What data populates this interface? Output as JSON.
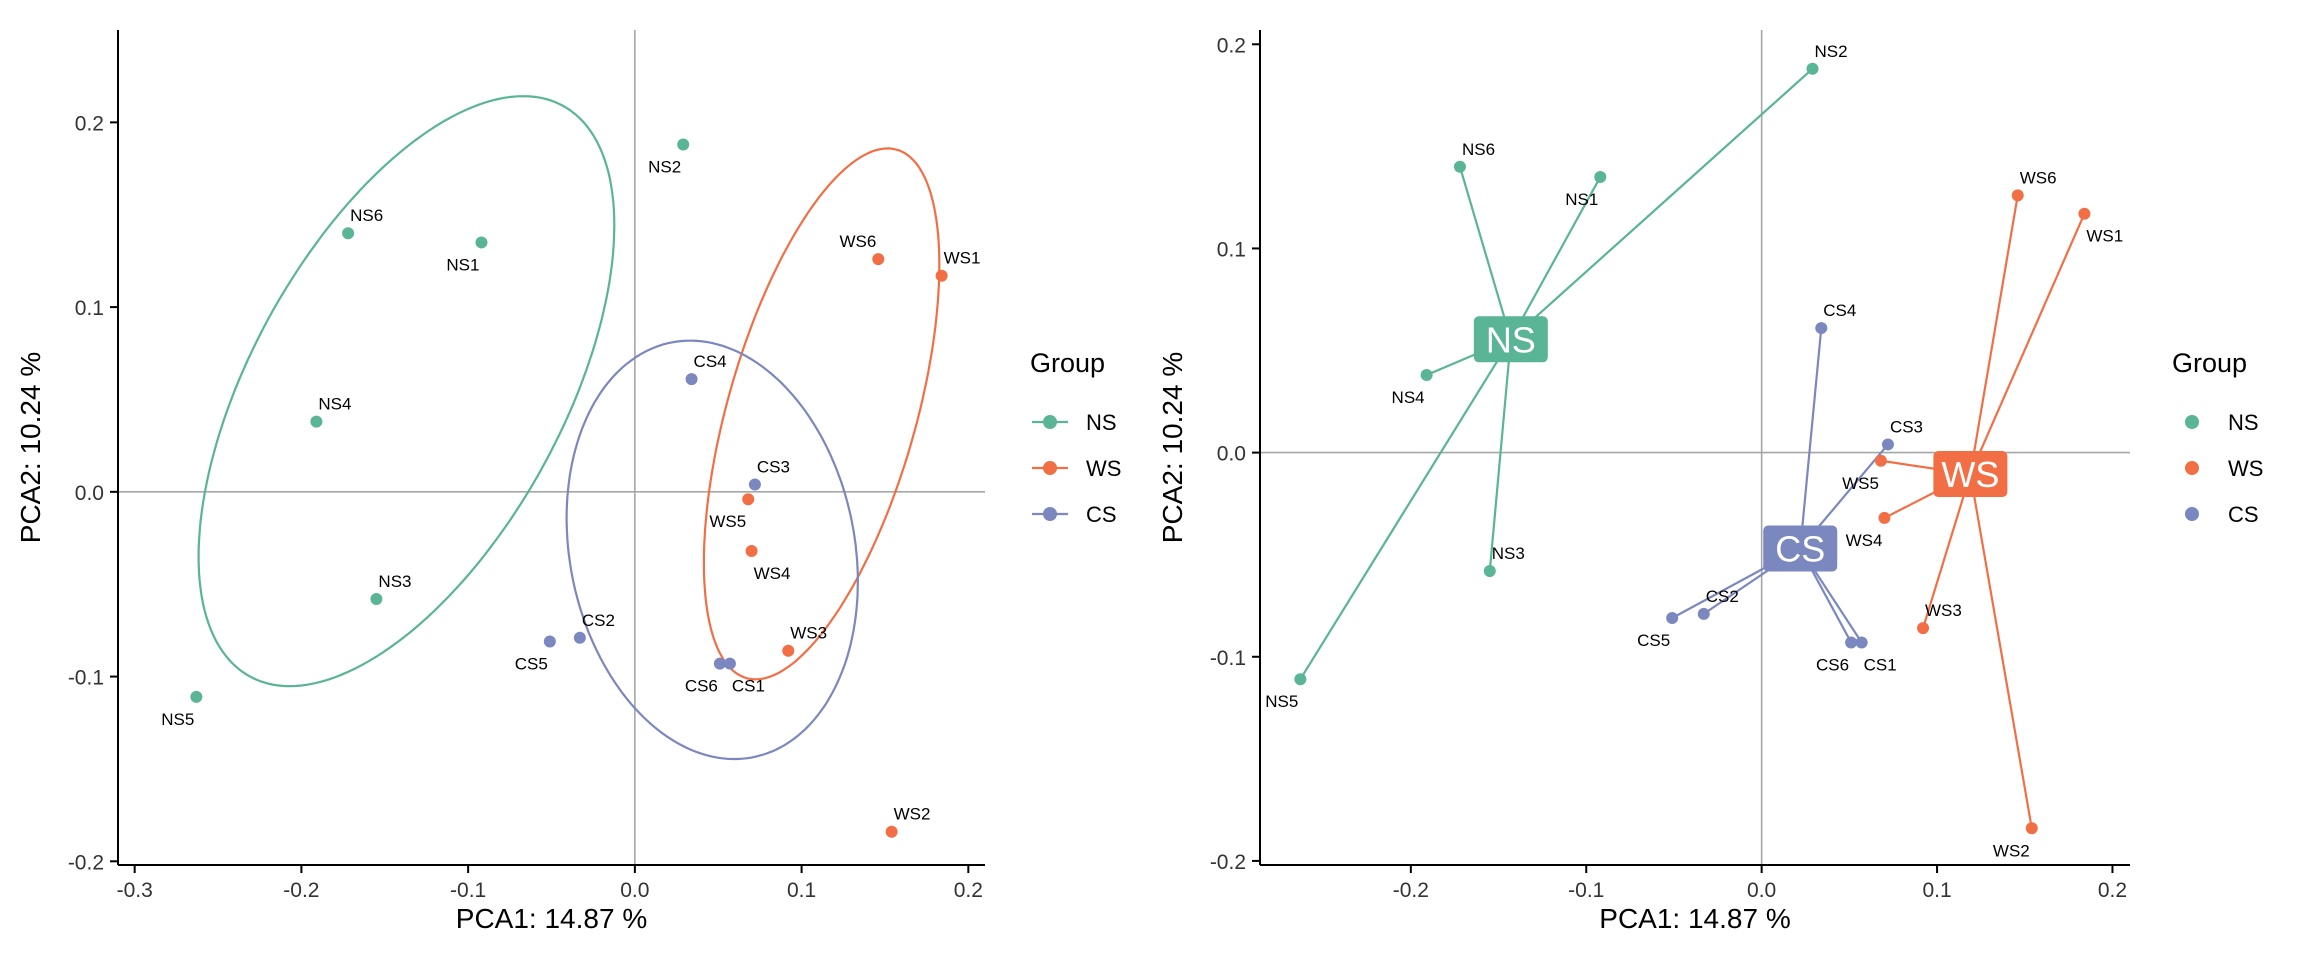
{
  "colors": {
    "NS": "#5AB496",
    "WS": "#F26F46",
    "CS": "#7B87BF",
    "axis": "#000000",
    "zero": "#A6A6A6",
    "text": "#000000"
  },
  "chart_data": [
    {
      "type": "scatter",
      "title": "",
      "xlabel": "PCA1:  14.87 %",
      "ylabel": "PCA2:  10.24 %",
      "xlim": [
        -0.31,
        0.21
      ],
      "ylim": [
        -0.202,
        0.25
      ],
      "xticks": [
        -0.3,
        -0.2,
        -0.1,
        0.0,
        0.1,
        0.2
      ],
      "xtick_labels": [
        "-0.3",
        "-0.2",
        "-0.1",
        "0.0",
        "0.1",
        "0.2"
      ],
      "yticks": [
        -0.2,
        -0.1,
        0.0,
        0.1,
        0.2
      ],
      "ytick_labels": [
        "-0.2",
        "-0.1",
        "0.0",
        "0.1",
        "0.2"
      ],
      "legend": {
        "title": "Group",
        "entries": [
          "NS",
          "WS",
          "CS"
        ],
        "position": "right"
      },
      "ellipses": [
        {
          "group": "NS",
          "center": [
            -0.137,
            0.0545
          ],
          "rx": 0.181,
          "ry": 0.091,
          "angle_deg": 57
        },
        {
          "group": "WS",
          "center": [
            0.112,
            0.0422
          ],
          "rx": 0.15,
          "ry": 0.056,
          "angle_deg": 72
        },
        {
          "group": "CS",
          "center": [
            0.0464,
            -0.0314
          ],
          "rx": 0.115,
          "ry": 0.085,
          "angle_deg": 105
        }
      ],
      "points": [
        {
          "label": "NS1",
          "group": "NS",
          "x": -0.092,
          "y": 0.135,
          "label_pos": "below-left"
        },
        {
          "label": "NS2",
          "group": "NS",
          "x": 0.029,
          "y": 0.188,
          "label_pos": "below-left"
        },
        {
          "label": "NS3",
          "group": "NS",
          "x": -0.155,
          "y": -0.058,
          "label_pos": "above-right"
        },
        {
          "label": "NS4",
          "group": "NS",
          "x": -0.191,
          "y": 0.038,
          "label_pos": "above-right"
        },
        {
          "label": "NS5",
          "group": "NS",
          "x": -0.263,
          "y": -0.111,
          "label_pos": "below-left"
        },
        {
          "label": "NS6",
          "group": "NS",
          "x": -0.172,
          "y": 0.14,
          "label_pos": "above-right"
        },
        {
          "label": "WS1",
          "group": "WS",
          "x": 0.184,
          "y": 0.117,
          "label_pos": "above-right"
        },
        {
          "label": "WS2",
          "group": "WS",
          "x": 0.154,
          "y": -0.184,
          "label_pos": "above-right"
        },
        {
          "label": "WS3",
          "group": "WS",
          "x": 0.092,
          "y": -0.086,
          "label_pos": "above-right"
        },
        {
          "label": "WS4",
          "group": "WS",
          "x": 0.07,
          "y": -0.032,
          "label_pos": "below-right"
        },
        {
          "label": "WS5",
          "group": "WS",
          "x": 0.068,
          "y": -0.004,
          "label_pos": "below-left"
        },
        {
          "label": "WS6",
          "group": "WS",
          "x": 0.146,
          "y": 0.126,
          "label_pos": "above-left"
        },
        {
          "label": "CS1",
          "group": "CS",
          "x": 0.057,
          "y": -0.093,
          "label_pos": "below-right"
        },
        {
          "label": "CS2",
          "group": "CS",
          "x": -0.033,
          "y": -0.079,
          "label_pos": "above-right"
        },
        {
          "label": "CS3",
          "group": "CS",
          "x": 0.072,
          "y": 0.004,
          "label_pos": "above-right"
        },
        {
          "label": "CS4",
          "group": "CS",
          "x": 0.034,
          "y": 0.061,
          "label_pos": "above-right"
        },
        {
          "label": "CS5",
          "group": "CS",
          "x": -0.051,
          "y": -0.081,
          "label_pos": "below-left"
        },
        {
          "label": "CS6",
          "group": "CS",
          "x": 0.051,
          "y": -0.093,
          "label_pos": "below-left"
        }
      ]
    },
    {
      "type": "scatter",
      "title": "",
      "xlabel": "PCA1:  14.87 %",
      "ylabel": "PCA2:  10.24 %",
      "xlim": [
        -0.286,
        0.21
      ],
      "ylim": [
        -0.202,
        0.207
      ],
      "xticks": [
        -0.2,
        -0.1,
        0.0,
        0.1,
        0.2
      ],
      "xtick_labels": [
        "-0.2",
        "-0.1",
        "0.0",
        "0.1",
        "0.2"
      ],
      "yticks": [
        -0.2,
        -0.1,
        0.0,
        0.1,
        0.2
      ],
      "ytick_labels": [
        "-0.2",
        "-0.1",
        "0.0",
        "0.1",
        "0.2"
      ],
      "legend": {
        "title": "Group",
        "entries": [
          "NS",
          "WS",
          "CS"
        ],
        "position": "right"
      },
      "centroids": [
        {
          "group": "NS",
          "label": "NS",
          "x": -0.143,
          "y": 0.0555
        },
        {
          "group": "WS",
          "label": "WS",
          "x": 0.119,
          "y": -0.0105
        },
        {
          "group": "CS",
          "label": "CS",
          "x": 0.022,
          "y": -0.047
        }
      ],
      "points": [
        {
          "label": "NS1",
          "group": "NS",
          "x": -0.092,
          "y": 0.135,
          "label_pos": "below-left"
        },
        {
          "label": "NS2",
          "group": "NS",
          "x": 0.029,
          "y": 0.188,
          "label_pos": "above-right"
        },
        {
          "label": "NS3",
          "group": "NS",
          "x": -0.155,
          "y": -0.058,
          "label_pos": "above-right"
        },
        {
          "label": "NS4",
          "group": "NS",
          "x": -0.191,
          "y": 0.038,
          "label_pos": "below-left"
        },
        {
          "label": "NS5",
          "group": "NS",
          "x": -0.263,
          "y": -0.111,
          "label_pos": "below-left"
        },
        {
          "label": "NS6",
          "group": "NS",
          "x": -0.172,
          "y": 0.14,
          "label_pos": "above-right"
        },
        {
          "label": "WS1",
          "group": "WS",
          "x": 0.184,
          "y": 0.117,
          "label_pos": "below-right"
        },
        {
          "label": "WS2",
          "group": "WS",
          "x": 0.154,
          "y": -0.184,
          "label_pos": "below-left"
        },
        {
          "label": "WS3",
          "group": "WS",
          "x": 0.092,
          "y": -0.086,
          "label_pos": "above-right"
        },
        {
          "label": "WS4",
          "group": "WS",
          "x": 0.07,
          "y": -0.032,
          "label_pos": "below-left"
        },
        {
          "label": "WS5",
          "group": "WS",
          "x": 0.068,
          "y": -0.004,
          "label_pos": "below-left"
        },
        {
          "label": "WS6",
          "group": "WS",
          "x": 0.146,
          "y": 0.126,
          "label_pos": "above-right"
        },
        {
          "label": "CS1",
          "group": "CS",
          "x": 0.057,
          "y": -0.093,
          "label_pos": "below-right"
        },
        {
          "label": "CS2",
          "group": "CS",
          "x": -0.033,
          "y": -0.079,
          "label_pos": "above-right"
        },
        {
          "label": "CS3",
          "group": "CS",
          "x": 0.072,
          "y": 0.004,
          "label_pos": "above-right"
        },
        {
          "label": "CS4",
          "group": "CS",
          "x": 0.034,
          "y": 0.061,
          "label_pos": "above-right"
        },
        {
          "label": "CS5",
          "group": "CS",
          "x": -0.051,
          "y": -0.081,
          "label_pos": "below-left"
        },
        {
          "label": "CS6",
          "group": "CS",
          "x": 0.051,
          "y": -0.093,
          "label_pos": "below-left"
        }
      ]
    }
  ]
}
